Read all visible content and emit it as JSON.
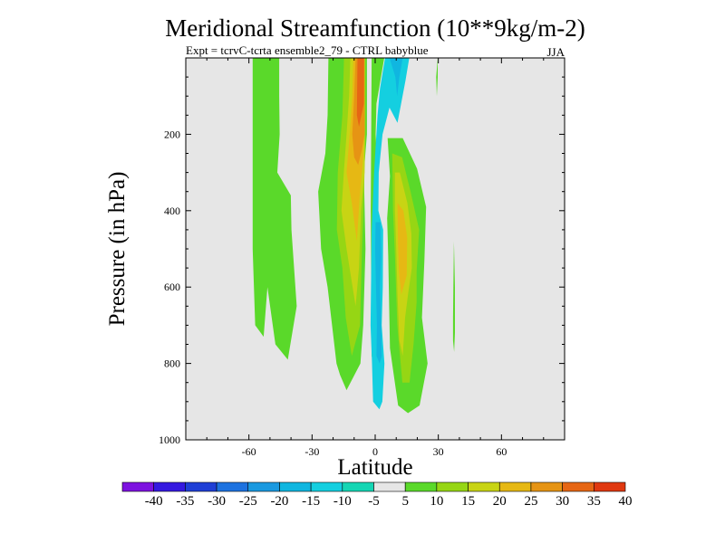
{
  "chart_data": {
    "type": "filled-contour",
    "title": "Meridional Streamfunction (10**9kg/m-2)",
    "subtitle": "Expt = tcrvC-tcrta ensemble2_79 - CTRL babyblue",
    "season": "JJA",
    "xlabel": "Latitude",
    "ylabel": "Pressure (in hPa)",
    "xlim": [
      -90,
      90
    ],
    "ylim": [
      0,
      1000
    ],
    "y_reversed": true,
    "x_ticks": [
      -60,
      -30,
      0,
      30,
      60
    ],
    "x_tick_labels": [
      "-60",
      "-30",
      "0",
      "30",
      "60"
    ],
    "y_ticks": [
      200,
      400,
      600,
      800,
      1000
    ],
    "y_tick_labels": [
      "200",
      "400",
      "600",
      "800",
      "1000"
    ],
    "background_color": "#e6e6e6",
    "colorbar": {
      "labels": [
        "-40",
        "-35",
        "-30",
        "-25",
        "-20",
        "-15",
        "-10",
        "-5",
        "5",
        "10",
        "15",
        "20",
        "25",
        "30",
        "35",
        "40"
      ],
      "colors": [
        "#7d12e0",
        "#3519e0",
        "#1f3fd6",
        "#1d72e0",
        "#1a99e0",
        "#10b6e0",
        "#14cfe0",
        "#14d6b4",
        "#e6e6e6",
        "#5ad92a",
        "#96d614",
        "#c8d414",
        "#e6b814",
        "#e69414",
        "#e66614",
        "#e03810"
      ]
    },
    "filled_regions": [
      {
        "color": "#5ad92a",
        "points": [
          [
            -58.2,
            0
          ],
          [
            -45.6,
            0
          ],
          [
            -45.6,
            100
          ],
          [
            -45.4,
            200
          ],
          [
            -46.5,
            300
          ],
          [
            -40.1,
            360
          ],
          [
            -39.8,
            450
          ],
          [
            -37.3,
            650
          ],
          [
            -41.5,
            790
          ],
          [
            -47.4,
            750
          ],
          [
            -51.2,
            600
          ],
          [
            -53.0,
            730
          ],
          [
            -57.0,
            700
          ],
          [
            -58.2,
            500
          ],
          [
            -58.2,
            200
          ]
        ]
      },
      {
        "color": "#5ad92a",
        "points": [
          [
            -22.2,
            0
          ],
          [
            -3.9,
            0
          ],
          [
            -3.9,
            200
          ],
          [
            -5.4,
            300
          ],
          [
            -4.6,
            500
          ],
          [
            -5.7,
            700
          ],
          [
            -7.0,
            800
          ],
          [
            -13.6,
            870
          ],
          [
            -16.7,
            830
          ],
          [
            -18.4,
            800
          ],
          [
            -22.6,
            600
          ],
          [
            -25.7,
            500
          ],
          [
            -27.1,
            350
          ],
          [
            -23.7,
            250
          ],
          [
            -22.6,
            150
          ]
        ]
      },
      {
        "color": "#5ad92a",
        "points": [
          [
            5.9,
            210
          ],
          [
            13.1,
            210
          ],
          [
            19.9,
            290
          ],
          [
            24.2,
            390
          ],
          [
            23.4,
            530
          ],
          [
            22.2,
            680
          ],
          [
            24.9,
            800
          ],
          [
            21.1,
            910
          ],
          [
            15.6,
            930
          ],
          [
            10.9,
            910
          ],
          [
            7.0,
            760
          ],
          [
            6.2,
            520
          ],
          [
            5.7,
            420
          ],
          [
            7.0,
            310
          ]
        ]
      },
      {
        "color": "#5ad92a",
        "points": [
          [
            -1.7,
            0
          ],
          [
            4.3,
            0
          ],
          [
            0.6,
            120
          ],
          [
            0.2,
            200
          ],
          [
            1.1,
            300
          ],
          [
            1.3,
            500
          ],
          [
            1.5,
            720
          ],
          [
            0.2,
            820
          ],
          [
            -1.7,
            780
          ],
          [
            -2.1,
            400
          ]
        ]
      },
      {
        "color": "#5ad92a",
        "points": [
          [
            29.0,
            50
          ],
          [
            29.7,
            0
          ],
          [
            29.7,
            50
          ],
          [
            29.3,
            100
          ]
        ]
      },
      {
        "color": "#5ad92a",
        "points": [
          [
            37.0,
            680
          ],
          [
            37.2,
            570
          ],
          [
            37.4,
            480
          ],
          [
            37.9,
            600
          ],
          [
            37.9,
            720
          ],
          [
            37.5,
            770
          ],
          [
            37.0,
            740
          ]
        ]
      },
      {
        "color": "#96d614",
        "points": [
          [
            -14.8,
            0
          ],
          [
            -4.6,
            0
          ],
          [
            -4.6,
            200
          ],
          [
            -5.3,
            350
          ],
          [
            -6.3,
            500
          ],
          [
            -7.2,
            700
          ],
          [
            -11.1,
            780
          ],
          [
            -14.0,
            680
          ],
          [
            -15.6,
            550
          ],
          [
            -18.2,
            450
          ],
          [
            -17.8,
            300
          ],
          [
            -15.6,
            150
          ]
        ]
      },
      {
        "color": "#96d614",
        "points": [
          [
            8.1,
            250
          ],
          [
            12.8,
            260
          ],
          [
            16.8,
            350
          ],
          [
            20.9,
            450
          ],
          [
            19.7,
            560
          ],
          [
            19.7,
            640
          ],
          [
            18.2,
            750
          ],
          [
            16.3,
            850
          ],
          [
            12.9,
            850
          ],
          [
            10.5,
            700
          ],
          [
            9.4,
            520
          ],
          [
            8.5,
            400
          ]
        ]
      },
      {
        "color": "#c8d414",
        "points": [
          [
            -11.8,
            0
          ],
          [
            -4.9,
            0
          ],
          [
            -5.0,
            200
          ],
          [
            -5.1,
            300
          ],
          [
            -6.7,
            400
          ],
          [
            -7.7,
            550
          ],
          [
            -9.3,
            650
          ],
          [
            -13.6,
            500
          ],
          [
            -16.0,
            400
          ],
          [
            -14.9,
            300
          ],
          [
            -13.6,
            200
          ],
          [
            -12.4,
            100
          ]
        ]
      },
      {
        "color": "#c8d414",
        "points": [
          [
            9.4,
            300
          ],
          [
            11.7,
            300
          ],
          [
            15.3,
            380
          ],
          [
            17.2,
            460
          ],
          [
            17.4,
            550
          ],
          [
            15.6,
            620
          ],
          [
            14.2,
            680
          ],
          [
            13.1,
            780
          ],
          [
            11.5,
            740
          ],
          [
            10.6,
            620
          ],
          [
            9.9,
            480
          ],
          [
            9.4,
            400
          ]
        ]
      },
      {
        "color": "#e6b814",
        "points": [
          [
            -10.4,
            0
          ],
          [
            -5.2,
            0
          ],
          [
            -5.1,
            200
          ],
          [
            -6.0,
            280
          ],
          [
            -7.3,
            360
          ],
          [
            -8.7,
            480
          ],
          [
            -11.1,
            380
          ],
          [
            -13.6,
            300
          ],
          [
            -12.1,
            200
          ],
          [
            -10.9,
            100
          ]
        ]
      },
      {
        "color": "#e6b814",
        "points": [
          [
            10.6,
            380
          ],
          [
            13.4,
            400
          ],
          [
            15.2,
            470
          ],
          [
            15.0,
            570
          ],
          [
            12.4,
            620
          ],
          [
            11.3,
            560
          ],
          [
            10.8,
            480
          ]
        ]
      },
      {
        "color": "#e69414",
        "points": [
          [
            -9.3,
            0
          ],
          [
            -5.1,
            0
          ],
          [
            -5.0,
            200
          ],
          [
            -6.3,
            240
          ],
          [
            -8.1,
            280
          ],
          [
            -10.0,
            260
          ],
          [
            -10.9,
            200
          ],
          [
            -10.0,
            100
          ]
        ]
      },
      {
        "color": "#e66614",
        "points": [
          [
            -8.4,
            0
          ],
          [
            -5.3,
            0
          ],
          [
            -5.4,
            120
          ],
          [
            -7.7,
            180
          ],
          [
            -8.7,
            150
          ]
        ]
      },
      {
        "color": "#14cfe0",
        "points": [
          [
            4.7,
            0
          ],
          [
            16.2,
            0
          ],
          [
            14.4,
            60
          ],
          [
            12.3,
            120
          ],
          [
            10.6,
            170
          ],
          [
            6.8,
            130
          ],
          [
            3.5,
            200
          ],
          [
            1.7,
            300
          ],
          [
            1.5,
            400
          ],
          [
            3.8,
            450
          ],
          [
            3.6,
            600
          ],
          [
            3.1,
            700
          ],
          [
            4.4,
            800
          ],
          [
            3.4,
            900
          ],
          [
            2.0,
            920
          ],
          [
            -1.0,
            900
          ],
          [
            -1.5,
            800
          ],
          [
            -2.2,
            700
          ],
          [
            -2.0,
            600
          ],
          [
            -1.7,
            450
          ],
          [
            -0.5,
            300
          ],
          [
            1.1,
            150
          ],
          [
            2.3,
            80
          ]
        ]
      },
      {
        "color": "#10b6e0",
        "points": [
          [
            6.8,
            0
          ],
          [
            13.1,
            0
          ],
          [
            11.5,
            50
          ],
          [
            10.4,
            100
          ],
          [
            9.6,
            50
          ]
        ]
      },
      {
        "color": "#10b6e0",
        "points": [
          [
            0.2,
            430
          ],
          [
            2.4,
            430
          ],
          [
            2.8,
            520
          ],
          [
            2.3,
            600
          ],
          [
            2.8,
            700
          ],
          [
            3.1,
            780
          ],
          [
            2.1,
            800
          ],
          [
            0.6,
            780
          ],
          [
            0.8,
            700
          ],
          [
            0.4,
            600
          ],
          [
            0.0,
            500
          ]
        ]
      }
    ]
  }
}
